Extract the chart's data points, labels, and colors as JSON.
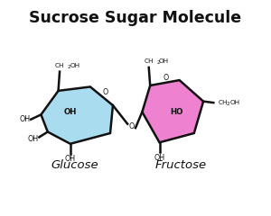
{
  "title": "Sucrose Sugar Molecule",
  "title_fontsize": 12.5,
  "title_fontweight": "bold",
  "glucose_label": "Glucose",
  "fructose_label": "Fructose",
  "label_fontsize": 9.5,
  "glucose_color": "#aadcf0",
  "fructose_color": "#ee82d0",
  "edge_color": "#111111",
  "text_color": "#111111",
  "bg_color": "#ffffff",
  "linewidth": 1.8
}
